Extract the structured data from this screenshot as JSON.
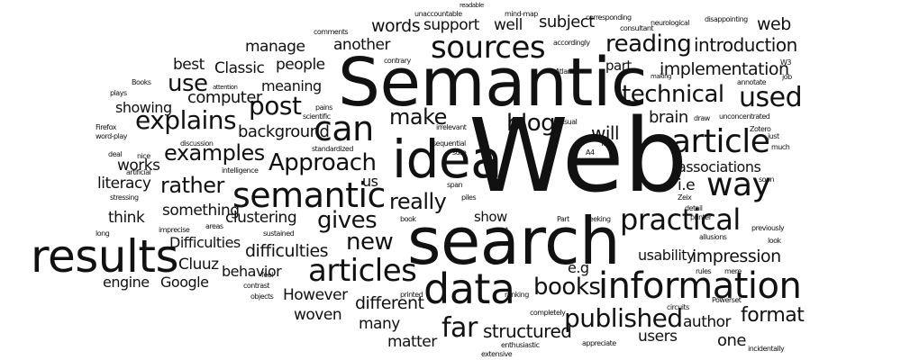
{
  "word_cloud": {
    "text_color": "#111111",
    "background_color": "#ffffff",
    "words": [
      "Web",
      "Semantic",
      "search",
      "idea",
      "data",
      "information",
      "results",
      "sources",
      "semantic",
      "article",
      "practical",
      "articles",
      "way",
      "books",
      "reading",
      "technical",
      "published",
      "can",
      "explains",
      "post",
      "make",
      "examples",
      "really",
      "blog",
      "Approach",
      "rather",
      "gives",
      "used",
      "introduction",
      "implementation",
      "new",
      "structured",
      "format",
      "far",
      "use",
      "difficulties",
      "Difficulties",
      "impression",
      "clustering",
      "behavior",
      "Google",
      "engine",
      "Cluuz",
      "However",
      "woven",
      "different",
      "many",
      "matter",
      "showing",
      "computer",
      "meaning",
      "background",
      "works",
      "literacy",
      "think",
      "something",
      "manage",
      "best",
      "Classic",
      "people",
      "another",
      "words",
      "support",
      "well",
      "subject",
      "web",
      "brain",
      "will",
      "associations",
      "author",
      "users",
      "one",
      "usability",
      "e.g",
      "i.e",
      "us",
      "show",
      "part",
      "readable",
      "unaccountable",
      "mind-map",
      "corresponding",
      "neurological",
      "disappointing",
      "comments",
      "consultant",
      "accordingly",
      "contrary",
      "Atlantic",
      "making",
      "annotate",
      "job",
      "W3",
      "pains",
      "Books",
      "attention",
      "plays",
      "Firefox",
      "word-play",
      "scientific",
      "irrelevant",
      "visual",
      "draw",
      "unconcentrated",
      "Zotero",
      "Teil",
      "just",
      "much",
      "discussion",
      "standardized",
      "sequential",
      "sure",
      "A4",
      "nice",
      "deal",
      "artificial",
      "intelligence",
      "stressing",
      "go",
      "span",
      "piles",
      "Zeix",
      "soon",
      "detail",
      "book",
      "want",
      "Part",
      "seeking",
      "printer",
      "previously",
      "look",
      "allusions",
      "imprecise",
      "areas",
      "long",
      "sustained",
      "feel",
      "rules",
      "mere",
      "contrast",
      "objects",
      "printed",
      "ranking",
      "completely",
      "circuits",
      "Powerset",
      "enthusiastic",
      "appreciate",
      "extensive",
      "incidentally"
    ]
  }
}
